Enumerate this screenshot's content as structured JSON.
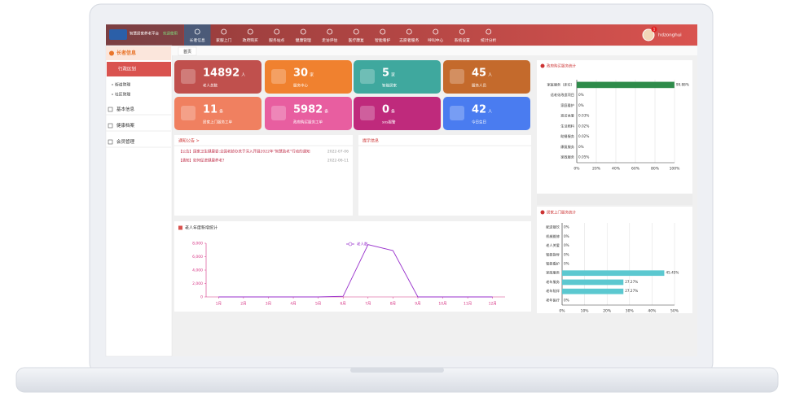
{
  "brand": {
    "name": "智慧居家养老平台",
    "badge": "欢迎使用"
  },
  "nav": {
    "items": [
      "长者信息",
      "家服上门",
      "政府购买",
      "服务站点",
      "健康管理",
      "走访评估",
      "医疗康复",
      "智能看护",
      "志愿者服务",
      "呼叫中心",
      "系统设置",
      "统计分析"
    ]
  },
  "user": {
    "name": "hdzonghui",
    "badge": 1
  },
  "sidebar": {
    "title": "长者信息",
    "items": [
      {
        "label": "行政区划",
        "children": [
          "街道管理",
          "社区管理"
        ]
      },
      {
        "label": "基本信息"
      },
      {
        "label": "健康档案"
      },
      {
        "label": "会员管理"
      }
    ]
  },
  "tabs": [
    "首页"
  ],
  "cards": [
    {
      "value": 14892,
      "unit": "人",
      "label": "老人总数"
    },
    {
      "value": 30,
      "unit": "家",
      "label": "服务中心"
    },
    {
      "value": 5,
      "unit": "家",
      "label": "智能居家"
    },
    {
      "value": 45,
      "unit": "人",
      "label": "服务人员"
    },
    {
      "value": 11,
      "unit": "条",
      "label": "居家上门服务工单"
    },
    {
      "value": 5982,
      "unit": "条",
      "label": "政府购买服务工单"
    },
    {
      "value": 0,
      "unit": "条",
      "label": "sos报警"
    },
    {
      "value": 42,
      "unit": "人",
      "label": "今日生日"
    }
  ],
  "notices": {
    "title": "通知公告 >",
    "items": [
      {
        "text": "【公告】国家卫生健康委:全国老龄办关于深入开展2022年“智慧助老”行动的通知",
        "date": "2022-07-06"
      },
      {
        "text": "【通知】如何促进健康养老?",
        "date": "2022-06-11"
      }
    ]
  },
  "alerts": {
    "title": "提示信息"
  },
  "chart_data": [
    {
      "type": "line",
      "title": "老人年度新增统计",
      "categories": [
        "1月",
        "2月",
        "3月",
        "4月",
        "5月",
        "6月",
        "7月",
        "8月",
        "9月",
        "10月",
        "11月",
        "12月"
      ],
      "series": [
        {
          "name": "老人数",
          "color": "#9932cc",
          "values": [
            0,
            0,
            0,
            0,
            0,
            100,
            7800,
            6900,
            0,
            0,
            0,
            0
          ]
        }
      ],
      "ylim": [
        0,
        8000
      ],
      "yticks": [
        0,
        {
          "value": 2000,
          "label": "2,000"
        },
        {
          "value": 4000,
          "label": "4,000"
        },
        {
          "value": 6000,
          "label": "6,000"
        },
        {
          "value": 8000,
          "label": "8,000"
        }
      ],
      "grid": false
    },
    {
      "type": "hbar",
      "title": "政府购买服务统计",
      "categories": [
        "家庭服务（床位）",
        "适老化改造项目",
        "家庭看护",
        "巡访关爱",
        "生活照料",
        "助餐服务",
        "康复服务",
        "家政服务"
      ],
      "values": [
        99.88,
        0,
        0,
        0.03,
        0.02,
        0.02,
        0,
        0.05
      ],
      "value_labels": [
        "99.88%",
        "0%",
        "0%",
        "0.03%",
        "0.02%",
        "0.02%",
        "0%",
        "0.05%"
      ],
      "color": "#2e8b4a",
      "xlim": [
        0,
        100
      ],
      "xticks": [
        {
          "value": 0,
          "label": "0%"
        },
        {
          "value": 20,
          "label": "20%"
        },
        {
          "value": 40,
          "label": "40%"
        },
        {
          "value": 60,
          "label": "60%"
        },
        {
          "value": 80,
          "label": "80%"
        },
        {
          "value": 100,
          "label": "100%"
        }
      ],
      "grid": true
    },
    {
      "type": "hbar",
      "title": "居家上门服务统计",
      "categories": [
        "配送餐饮",
        "机械维修",
        "老人关爱",
        "智能指导",
        "智能看护",
        "家政服务",
        "老年服务",
        "老年陪伴",
        "老年医疗"
      ],
      "values": [
        0,
        0,
        0,
        0,
        0,
        45.45,
        27.27,
        27.27,
        0
      ],
      "value_labels": [
        "0%",
        "0%",
        "0%",
        "0%",
        "0%",
        "45.45%",
        "27.27%",
        "27.27%",
        "0%"
      ],
      "color": "#5bc8d0",
      "xlim": [
        0,
        50
      ],
      "xticks": [
        {
          "value": 0,
          "label": "0%"
        },
        {
          "value": 10,
          "label": "10%"
        },
        {
          "value": 20,
          "label": "20%"
        },
        {
          "value": 30,
          "label": "30%"
        },
        {
          "value": 40,
          "label": "40%"
        },
        {
          "value": 50,
          "label": "50%"
        }
      ],
      "grid": true
    }
  ]
}
